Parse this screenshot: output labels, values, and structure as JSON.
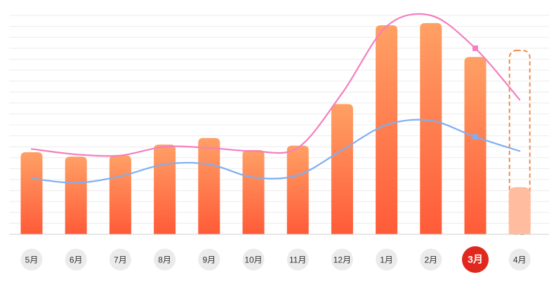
{
  "chart_data": {
    "type": "bar",
    "categories": [
      "5月",
      "6月",
      "7月",
      "8月",
      "9月",
      "10月",
      "11月",
      "12月",
      "1月",
      "2月",
      "3月",
      "4月"
    ],
    "selected_category": "3月",
    "ylim": [
      0,
      20
    ],
    "grid": true,
    "bars": {
      "values": [
        7.5,
        7.1,
        7.2,
        8.2,
        8.8,
        7.7,
        8.1,
        11.9,
        19.1,
        19.3,
        16.2,
        4.3
      ],
      "projected_index": 11,
      "projected_total": 16.8
    },
    "lines": [
      {
        "color": "#f47fbf",
        "values": [
          7.8,
          7.3,
          7.2,
          8.0,
          7.9,
          7.6,
          7.9,
          12.9,
          19.0,
          20.0,
          17.0,
          12.3
        ],
        "marker_index": 10
      },
      {
        "color": "#7faef2",
        "values": [
          5.1,
          4.7,
          5.3,
          6.4,
          6.4,
          5.2,
          5.4,
          7.7,
          10.0,
          10.4,
          8.9,
          7.6
        ],
        "marker_index": 10
      }
    ],
    "colors": {
      "bar_top": "#ffa065",
      "bar_bottom": "#ff5b38",
      "projected_bar": "#ffbc9e",
      "projected_outline": "#f28a50",
      "grid": "#ececec",
      "axis": "#cfcfcf",
      "pill": "#ebebeb",
      "pill_text": "#333333",
      "selected_pill": "#e0281f",
      "selected_text": "#ffffff"
    }
  }
}
